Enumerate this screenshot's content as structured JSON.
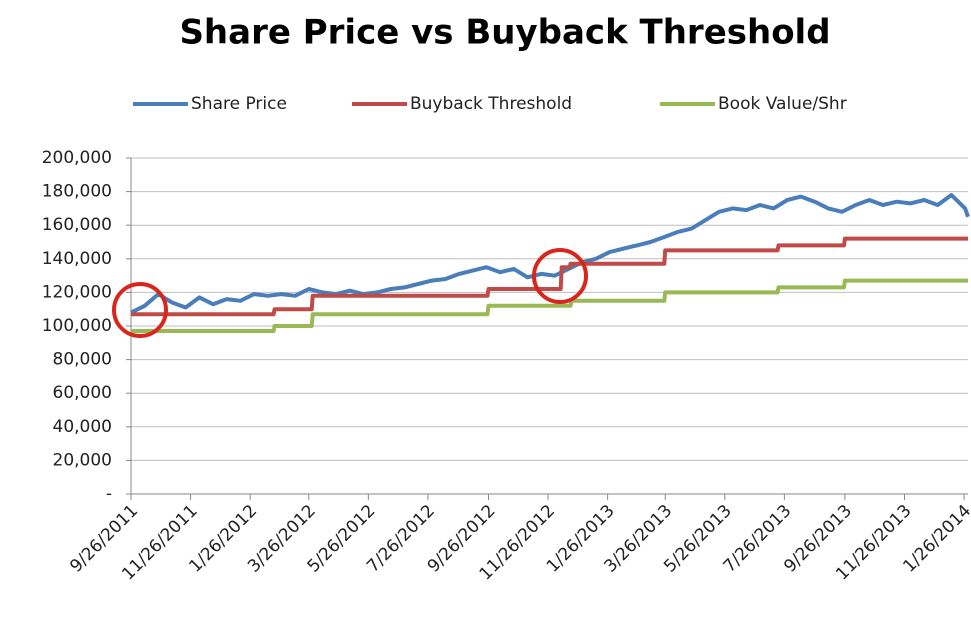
{
  "chart_data": {
    "type": "line",
    "title": "Share Price vs Buyback Threshold",
    "xlim": [
      "9/26/2011",
      "1/30/2014"
    ],
    "xticks": [
      "9/26/2011",
      "11/26/2011",
      "1/26/2012",
      "3/26/2012",
      "5/26/2012",
      "7/26/2012",
      "9/26/2012",
      "11/26/2012",
      "1/26/2013",
      "3/26/2013",
      "5/26/2013",
      "7/26/2013",
      "9/26/2013",
      "11/26/2013",
      "1/26/2014"
    ],
    "ylim": [
      0,
      200000
    ],
    "yticks": [
      {
        "value": 0,
        "label": "-"
      },
      {
        "value": 20000,
        "label": "20,000"
      },
      {
        "value": 40000,
        "label": "40,000"
      },
      {
        "value": 60000,
        "label": "60,000"
      },
      {
        "value": 80000,
        "label": "80,000"
      },
      {
        "value": 100000,
        "label": "100,000"
      },
      {
        "value": 120000,
        "label": "120,000"
      },
      {
        "value": 140000,
        "label": "140,000"
      },
      {
        "value": 160000,
        "label": "160,000"
      },
      {
        "value": 180000,
        "label": "180,000"
      },
      {
        "value": 200000,
        "label": "200,000"
      }
    ],
    "grid": true,
    "legend": "top",
    "series": [
      {
        "name": "Share Price",
        "color": "#4a7ebb",
        "x": [
          "9/26/2011",
          "10/10/2011",
          "10/24/2011",
          "11/7/2011",
          "11/21/2011",
          "12/5/2011",
          "12/19/2011",
          "1/2/2012",
          "1/16/2012",
          "1/30/2012",
          "2/13/2012",
          "2/27/2012",
          "3/12/2012",
          "3/26/2012",
          "4/9/2012",
          "4/23/2012",
          "5/7/2012",
          "5/21/2012",
          "6/4/2012",
          "6/18/2012",
          "7/2/2012",
          "7/16/2012",
          "7/30/2012",
          "8/13/2012",
          "8/27/2012",
          "9/10/2012",
          "9/24/2012",
          "10/8/2012",
          "10/22/2012",
          "11/5/2012",
          "11/19/2012",
          "12/3/2012",
          "12/17/2012",
          "12/31/2012",
          "1/14/2013",
          "1/28/2013",
          "2/11/2013",
          "2/25/2013",
          "3/11/2013",
          "3/25/2013",
          "4/8/2013",
          "4/22/2013",
          "5/6/2013",
          "5/20/2013",
          "6/3/2013",
          "6/17/2013",
          "7/1/2013",
          "7/15/2013",
          "7/29/2013",
          "8/12/2013",
          "8/26/2013",
          "9/9/2013",
          "9/23/2013",
          "10/7/2013",
          "10/21/2013",
          "11/4/2013",
          "11/18/2013",
          "12/2/2013",
          "12/16/2013",
          "12/30/2013",
          "1/13/2014",
          "1/27/2014",
          "1/30/2014"
        ],
        "values": [
          108000,
          112000,
          119000,
          114000,
          111000,
          117000,
          113000,
          116000,
          115000,
          119000,
          118000,
          119000,
          118000,
          122000,
          120000,
          119000,
          121000,
          119000,
          120000,
          122000,
          123000,
          125000,
          127000,
          128000,
          131000,
          133000,
          135000,
          132000,
          134000,
          129000,
          131000,
          130000,
          134000,
          138000,
          140000,
          144000,
          146000,
          148000,
          150000,
          153000,
          156000,
          158000,
          163000,
          168000,
          170000,
          169000,
          172000,
          170000,
          175000,
          177000,
          174000,
          170000,
          168000,
          172000,
          175000,
          172000,
          174000,
          173000,
          175000,
          172000,
          178000,
          170000,
          165000
        ]
      },
      {
        "name": "Buyback Threshold",
        "color": "#be4b48",
        "x": [
          "9/26/2011",
          "2/19/2012",
          "2/20/2012",
          "3/29/2012",
          "3/30/2012",
          "9/25/2012",
          "9/26/2012",
          "12/9/2012",
          "12/10/2012",
          "12/18/2012",
          "12/19/2012",
          "3/25/2013",
          "3/26/2013",
          "7/19/2013",
          "7/20/2013",
          "9/25/2013",
          "9/26/2013",
          "1/30/2014"
        ],
        "values": [
          107000,
          107000,
          110000,
          110000,
          118000,
          118000,
          122000,
          122000,
          135000,
          135000,
          137000,
          137000,
          145000,
          145000,
          148000,
          148000,
          152000,
          152000
        ]
      },
      {
        "name": "Book Value/Shr",
        "color": "#98b954",
        "x": [
          "9/26/2011",
          "2/19/2012",
          "2/20/2012",
          "3/29/2012",
          "3/30/2012",
          "9/25/2012",
          "9/26/2012",
          "12/19/2012",
          "12/20/2012",
          "3/25/2013",
          "3/26/2013",
          "7/19/2013",
          "7/20/2013",
          "9/25/2013",
          "9/26/2013",
          "1/30/2014"
        ],
        "values": [
          97000,
          97000,
          100000,
          100000,
          107000,
          107000,
          112000,
          112000,
          115000,
          115000,
          120000,
          120000,
          123000,
          123000,
          127000,
          127000
        ]
      }
    ]
  }
}
